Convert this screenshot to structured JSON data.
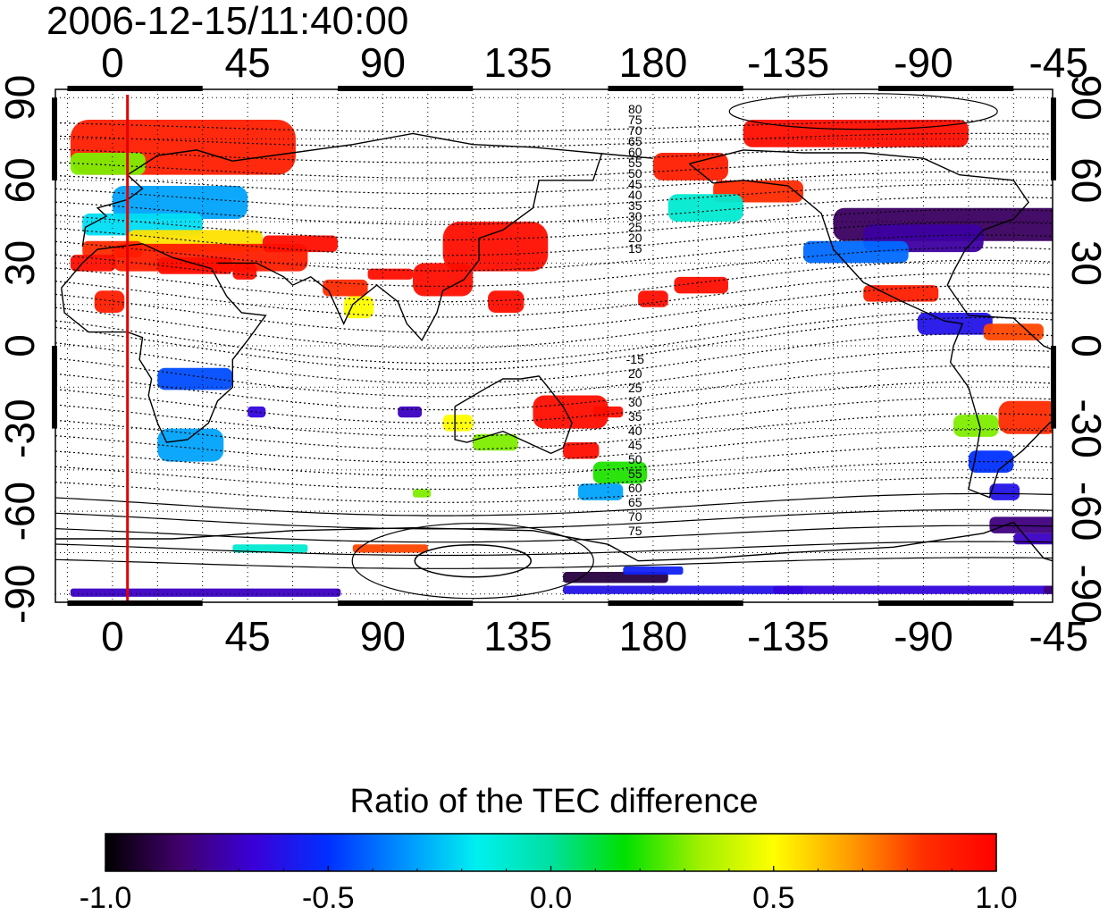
{
  "title": "2006-12-15/11:40:00",
  "map": {
    "lon_ticks": [
      "0",
      "45",
      "90",
      "135",
      "180",
      "-135",
      "-90",
      "-45"
    ],
    "lon_tick_values": [
      0,
      45,
      90,
      135,
      180,
      225,
      270,
      315
    ],
    "lon_range": [
      -19,
      313
    ],
    "lat_ticks": [
      "90",
      "60",
      "30",
      "0",
      "-30",
      "-60",
      "-90"
    ],
    "lat_tick_values": [
      90,
      60,
      30,
      0,
      -30,
      -60,
      -90
    ],
    "lat_range": [
      -93,
      93
    ],
    "grid": true,
    "meridian_marker": {
      "lon": 5,
      "color": "#e00000"
    },
    "contour_labels_north": [
      "80",
      "75",
      "70",
      "65",
      "60",
      "55",
      "50",
      "45",
      "40",
      "35",
      "30",
      "25",
      "20",
      "15"
    ],
    "contour_labels_south": [
      "-15",
      "20",
      "25",
      "30",
      "35",
      "40",
      "45",
      "50",
      "55",
      "60",
      "65",
      "70",
      "75"
    ],
    "colors": {
      "positive": "#ff1010",
      "negative": "#1040ff",
      "coast": "#000000"
    }
  },
  "colorbar": {
    "title": "Ratio of the TEC difference",
    "ticks": [
      "-1.0",
      "-0.5",
      "0.0",
      "0.5",
      "1.0"
    ],
    "range": [
      -1.0,
      1.0
    ],
    "colormap": [
      "#000000",
      "#40006a",
      "#3a00d8",
      "#0030ff",
      "#0090ff",
      "#00f0f0",
      "#00e0a0",
      "#00e000",
      "#a0f000",
      "#ffff00",
      "#ffa000",
      "#ff3000",
      "#ff0000"
    ]
  }
}
